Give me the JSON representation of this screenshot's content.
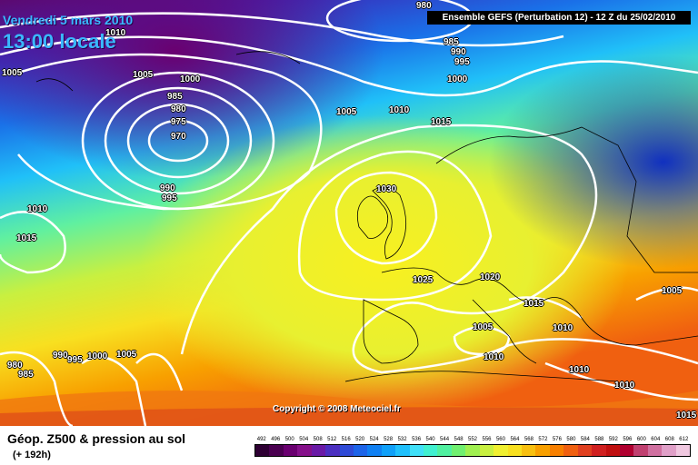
{
  "header": {
    "date": "Vendredi 5 mars 2010",
    "local_time": "13:00 locale",
    "model_run": "Ensemble GEFS (Perturbation 12)  -  12 Z du 25/02/2010"
  },
  "copyright": "Copyright © 2008 Meteociel.fr",
  "legend": {
    "title": "Géop. Z500 & pression au sol",
    "lead_time": "(+ 192h)",
    "ticks": [
      "492",
      "496",
      "500",
      "504",
      "508",
      "512",
      "516",
      "520",
      "524",
      "528",
      "532",
      "536",
      "540",
      "544",
      "548",
      "552",
      "556",
      "560",
      "564",
      "568",
      "572",
      "576",
      "580",
      "584",
      "588",
      "592",
      "596",
      "600",
      "604",
      "608",
      "612"
    ],
    "colors": [
      "#2e0033",
      "#4a0050",
      "#6a0070",
      "#85108a",
      "#6a1aa6",
      "#4b2fc0",
      "#2f4ad6",
      "#1d64e8",
      "#1080f2",
      "#10a0f8",
      "#20c0fc",
      "#40e0f8",
      "#40f0d0",
      "#50f0a0",
      "#70f070",
      "#a0f050",
      "#c8f040",
      "#f0f030",
      "#f8e020",
      "#f8c010",
      "#f8a000",
      "#f88000",
      "#f06010",
      "#e04020",
      "#d02020",
      "#c01010",
      "#b00030",
      "#c04070",
      "#d070a0",
      "#e0a0c8",
      "#f0c8e0"
    ]
  },
  "isobar_labels": [
    {
      "text": "980"
    },
    {
      "text": "985"
    },
    {
      "text": "990"
    },
    {
      "text": "995"
    },
    {
      "text": "1000"
    },
    {
      "text": "1010"
    },
    {
      "text": "1005"
    },
    {
      "text": "1005"
    },
    {
      "text": "1000"
    },
    {
      "text": "985"
    },
    {
      "text": "980"
    },
    {
      "text": "975"
    },
    {
      "text": "970"
    },
    {
      "text": "990"
    },
    {
      "text": "995"
    },
    {
      "text": "1005"
    },
    {
      "text": "1010"
    },
    {
      "text": "1015"
    },
    {
      "text": "1010"
    },
    {
      "text": "1015"
    },
    {
      "text": "1030"
    },
    {
      "text": "1025"
    },
    {
      "text": "1020"
    },
    {
      "text": "1015"
    },
    {
      "text": "1005"
    },
    {
      "text": "1010"
    },
    {
      "text": "1005"
    },
    {
      "text": "1010"
    },
    {
      "text": "1010"
    },
    {
      "text": "1010"
    },
    {
      "text": "1015"
    },
    {
      "text": "980"
    },
    {
      "text": "985"
    },
    {
      "text": "990"
    },
    {
      "text": "995"
    },
    {
      "text": "1000"
    },
    {
      "text": "1005"
    }
  ]
}
